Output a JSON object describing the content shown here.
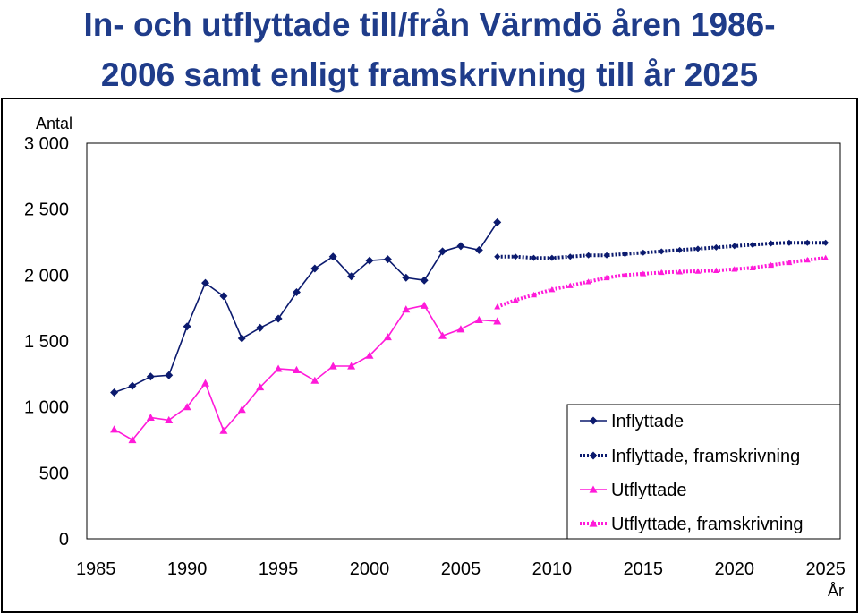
{
  "title_line1": "In- och utflyttade  till/från Värmdö åren 1986-",
  "title_line2": "2006 samt enligt framskrivning till år 2025",
  "chart_data": {
    "type": "line",
    "ylabel": "Antal",
    "xlabel": "År",
    "xlim": [
      1984.5,
      2025.8
    ],
    "ylim": [
      0,
      3000
    ],
    "y_ticks": [
      0,
      500,
      1000,
      1500,
      2000,
      2500,
      3000
    ],
    "y_tick_labels": [
      "0",
      "500",
      "1 000",
      "1 500",
      "2 000",
      "2 500",
      "3 000"
    ],
    "x_ticks": [
      1985,
      1990,
      1995,
      2000,
      2005,
      2010,
      2015,
      2020,
      2025
    ],
    "x_tick_labels": [
      "1985",
      "1990",
      "1995",
      "2000",
      "2005",
      "2010",
      "2015",
      "2020",
      "2025"
    ],
    "grid": false,
    "legend_position": "bottom-right",
    "series": [
      {
        "name": "Inflyttade",
        "color": "#0b1a6e",
        "marker": "diamond",
        "style": "solid",
        "x": [
          1986,
          1987,
          1988,
          1989,
          1990,
          1991,
          1992,
          1993,
          1994,
          1995,
          1996,
          1997,
          1998,
          1999,
          2000,
          2001,
          2002,
          2003,
          2004,
          2005,
          2006,
          2007
        ],
        "y": [
          1110,
          1160,
          1230,
          1240,
          1610,
          1940,
          1840,
          1520,
          1600,
          1670,
          1870,
          2050,
          2140,
          1990,
          2110,
          2120,
          1980,
          1960,
          2180,
          2220,
          2190,
          2400
        ]
      },
      {
        "name": "Inflyttade, framskrivning",
        "color": "#0b1a6e",
        "marker": "diamond",
        "style": "dotted",
        "x": [
          2007,
          2008,
          2009,
          2010,
          2011,
          2012,
          2013,
          2014,
          2015,
          2016,
          2017,
          2018,
          2019,
          2020,
          2021,
          2022,
          2023,
          2024,
          2025
        ],
        "y": [
          2140,
          2140,
          2130,
          2130,
          2140,
          2150,
          2150,
          2160,
          2170,
          2180,
          2190,
          2200,
          2210,
          2220,
          2230,
          2240,
          2245,
          2245,
          2245
        ]
      },
      {
        "name": "Utflyttade",
        "color": "#ff1ad9",
        "marker": "triangle",
        "style": "solid",
        "x": [
          1986,
          1987,
          1988,
          1989,
          1990,
          1991,
          1992,
          1993,
          1994,
          1995,
          1996,
          1997,
          1998,
          1999,
          2000,
          2001,
          2002,
          2003,
          2004,
          2005,
          2006,
          2007
        ],
        "y": [
          830,
          750,
          920,
          900,
          1000,
          1180,
          820,
          980,
          1150,
          1290,
          1280,
          1200,
          1310,
          1310,
          1390,
          1530,
          1740,
          1770,
          1540,
          1590,
          1660,
          1650
        ]
      },
      {
        "name": "Utflyttade, framskrivning",
        "color": "#ff1ad9",
        "marker": "triangle",
        "style": "dotted",
        "x": [
          2007,
          2008,
          2009,
          2010,
          2011,
          2012,
          2013,
          2014,
          2015,
          2016,
          2017,
          2018,
          2019,
          2020,
          2021,
          2022,
          2023,
          2024,
          2025
        ],
        "y": [
          1760,
          1810,
          1850,
          1890,
          1920,
          1950,
          1980,
          2000,
          2010,
          2020,
          2025,
          2030,
          2035,
          2045,
          2055,
          2075,
          2095,
          2115,
          2130
        ]
      }
    ]
  }
}
